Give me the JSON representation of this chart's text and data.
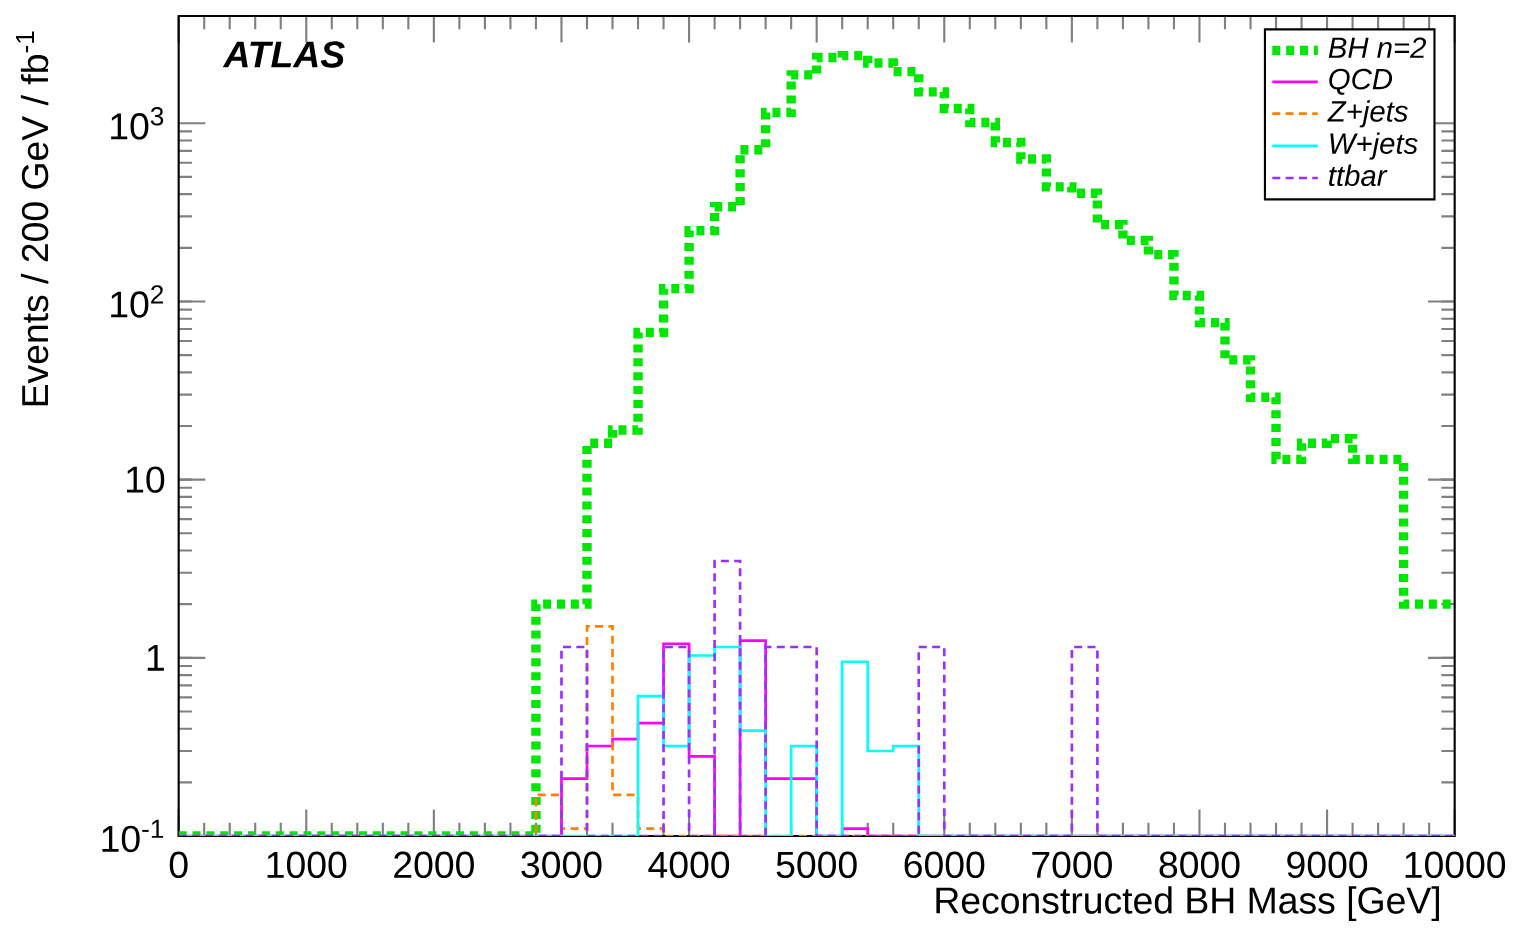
{
  "chart_data": {
    "type": "histogram",
    "xlabel": "Reconstructed BH Mass [GeV]",
    "ylabel": "Events /  200 GeV / fb$^{-1}$",
    "annotations": [
      "ATLAS"
    ],
    "bins": [
      0,
      200,
      400,
      600,
      800,
      1000,
      1200,
      1400,
      1600,
      1800,
      2000,
      2200,
      2400,
      2600,
      2800,
      3000,
      3200,
      3400,
      3600,
      3800,
      4000,
      4200,
      4400,
      4600,
      4800,
      5000,
      5200,
      5400,
      5600,
      5800,
      6000,
      6200,
      6400,
      6600,
      6800,
      7000,
      7200,
      7400,
      7600,
      7800,
      8000,
      8200,
      8400,
      8600,
      8800,
      9000,
      9200,
      9400,
      9600,
      9800,
      10000
    ],
    "series": [
      {
        "name": "BH n=2",
        "color": "#00e600",
        "line_style": "dotted",
        "values": [
          0.1,
          0.1,
          0.1,
          0.1,
          0.1,
          0.1,
          0.1,
          0.1,
          0.1,
          0.1,
          0.1,
          0.1,
          0.1,
          0.1,
          2.0,
          2.0,
          16,
          19,
          67,
          118,
          250,
          340,
          710,
          1150,
          1870,
          2340,
          2400,
          2180,
          1950,
          1500,
          1210,
          1010,
          780,
          630,
          440,
          405,
          270,
          220,
          183,
          108,
          76,
          47,
          29,
          13,
          16,
          17,
          13,
          13,
          2.0,
          2.0
        ]
      },
      {
        "name": "QCD",
        "color": "#ff00ff",
        "line_style": "solid",
        "values": [
          0.1,
          0.1,
          0.1,
          0.1,
          0.1,
          0.1,
          0.1,
          0.1,
          0.1,
          0.1,
          0.1,
          0.1,
          0.1,
          0.1,
          0.1,
          0.21,
          0.32,
          0.35,
          0.43,
          1.2,
          0.28,
          0.1,
          1.25,
          0.21,
          0.21,
          0.1,
          0.11,
          0.1,
          0.1,
          0.1,
          0.1,
          0.1,
          0.1,
          0.1,
          0.1,
          0.1,
          0.1,
          0.1,
          0.1,
          0.1,
          0.1,
          0.1,
          0.1,
          0.1,
          0.1,
          0.1,
          0.1,
          0.1,
          0.1,
          0.1
        ]
      },
      {
        "name": "Z+jets",
        "color": "#ff8000",
        "line_style": "dashed",
        "values": [
          0.1,
          0.1,
          0.1,
          0.1,
          0.1,
          0.1,
          0.1,
          0.1,
          0.1,
          0.1,
          0.1,
          0.1,
          0.1,
          0.1,
          0.17,
          0.11,
          1.5,
          0.17,
          0.11,
          0.1,
          0.1,
          0.1,
          0.1,
          0.1,
          0.1,
          0.1,
          0.1,
          0.1,
          0.1,
          0.1,
          0.1,
          0.1,
          0.1,
          0.1,
          0.1,
          0.1,
          0.1,
          0.1,
          0.1,
          0.1,
          0.1,
          0.1,
          0.1,
          0.1,
          0.1,
          0.1,
          0.1,
          0.1,
          0.1,
          0.1
        ]
      },
      {
        "name": "W+jets",
        "color": "#00ffff",
        "line_style": "solid",
        "values": [
          0.1,
          0.1,
          0.1,
          0.1,
          0.1,
          0.1,
          0.1,
          0.1,
          0.1,
          0.1,
          0.1,
          0.1,
          0.1,
          0.1,
          0.1,
          0.1,
          0.1,
          0.1,
          0.61,
          0.32,
          1.03,
          1.15,
          0.39,
          0.1,
          0.32,
          0.1,
          0.95,
          0.3,
          0.32,
          0.1,
          0.1,
          0.1,
          0.1,
          0.1,
          0.1,
          0.1,
          0.1,
          0.1,
          0.1,
          0.1,
          0.1,
          0.1,
          0.1,
          0.1,
          0.1,
          0.1,
          0.1,
          0.1,
          0.1,
          0.1
        ]
      },
      {
        "name": "ttbar",
        "color": "#9a30ff",
        "line_style": "dashed",
        "values": [
          0.1,
          0.1,
          0.1,
          0.1,
          0.1,
          0.1,
          0.1,
          0.1,
          0.1,
          0.1,
          0.1,
          0.1,
          0.1,
          0.1,
          0.1,
          1.15,
          0.1,
          0.1,
          0.1,
          1.15,
          0.1,
          3.5,
          0.1,
          1.15,
          1.15,
          0.1,
          0.1,
          0.1,
          0.1,
          1.15,
          0.1,
          0.1,
          0.1,
          0.1,
          0.1,
          1.15,
          0.1,
          0.1,
          0.1,
          0.1,
          0.1,
          0.1,
          0.1,
          0.1,
          0.1,
          0.1,
          0.1,
          0.1,
          0.1,
          0.1
        ]
      }
    ],
    "xlim": [
      0,
      10000
    ],
    "ylim": [
      0.1,
      4000
    ],
    "log": "y",
    "xticks": [
      0,
      1000,
      2000,
      3000,
      4000,
      5000,
      6000,
      7000,
      8000,
      9000,
      10000
    ],
    "yticks": [
      {
        "value": 0.1,
        "label": "10$^{-1}$"
      },
      1,
      10,
      {
        "value": 100,
        "label": "10$^{2}$"
      },
      {
        "value": 1000,
        "label": "10$^{3}$"
      }
    ],
    "grid": false,
    "legend": "top right",
    "marker": "none"
  }
}
